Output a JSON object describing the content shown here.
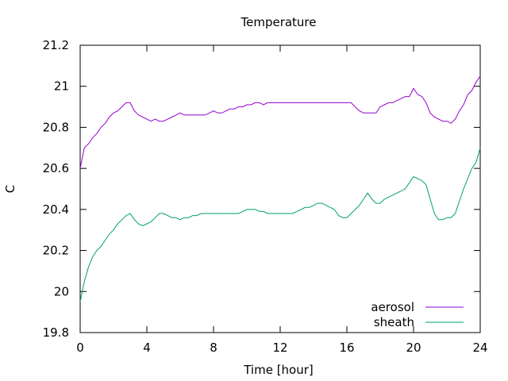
{
  "chart_data": {
    "type": "line",
    "title": "Temperature",
    "xlabel": "Time [hour]",
    "ylabel": "C",
    "xlim": [
      0,
      24
    ],
    "ylim": [
      19.8,
      21.2
    ],
    "x_ticks": [
      0,
      4,
      8,
      12,
      16,
      20,
      24
    ],
    "y_ticks": [
      19.8,
      20,
      20.2,
      20.4,
      20.6,
      20.8,
      21,
      21.2
    ],
    "x_tick_labels": [
      "0",
      "4",
      "8",
      "12",
      "16",
      "20",
      "24"
    ],
    "y_tick_labels": [
      "19.8",
      "20",
      "20.2",
      "20.4",
      "20.6",
      "20.8",
      "21",
      "21.2"
    ],
    "grid": false,
    "legend_position": "bottom-right",
    "x_step": 0.25,
    "series": [
      {
        "name": "aerosol",
        "color": "#9400d3",
        "values": [
          20.6,
          20.7,
          20.72,
          20.75,
          20.77,
          20.8,
          20.82,
          20.85,
          20.87,
          20.88,
          20.9,
          20.92,
          20.92,
          20.88,
          20.86,
          20.85,
          20.84,
          20.83,
          20.84,
          20.83,
          20.83,
          20.84,
          20.85,
          20.86,
          20.87,
          20.86,
          20.86,
          20.86,
          20.86,
          20.86,
          20.86,
          20.87,
          20.88,
          20.87,
          20.87,
          20.88,
          20.89,
          20.89,
          20.9,
          20.9,
          20.91,
          20.91,
          20.92,
          20.92,
          20.91,
          20.92,
          20.92,
          20.92,
          20.92,
          20.92,
          20.92,
          20.92,
          20.92,
          20.92,
          20.92,
          20.92,
          20.92,
          20.92,
          20.92,
          20.92,
          20.92,
          20.92,
          20.92,
          20.92,
          20.92,
          20.92,
          20.9,
          20.88,
          20.87,
          20.87,
          20.87,
          20.87,
          20.9,
          20.91,
          20.92,
          20.92,
          20.93,
          20.94,
          20.95,
          20.95,
          20.99,
          20.96,
          20.95,
          20.92,
          20.87,
          20.85,
          20.84,
          20.83,
          20.83,
          20.82,
          20.84,
          20.88,
          20.91,
          20.96,
          20.98,
          21.02,
          21.05
        ]
      },
      {
        "name": "sheath",
        "color": "#009e73",
        "values": [
          19.95,
          20.05,
          20.12,
          20.17,
          20.2,
          20.22,
          20.25,
          20.28,
          20.3,
          20.33,
          20.35,
          20.37,
          20.38,
          20.35,
          20.33,
          20.32,
          20.33,
          20.34,
          20.36,
          20.38,
          20.38,
          20.37,
          20.36,
          20.36,
          20.35,
          20.36,
          20.36,
          20.37,
          20.37,
          20.38,
          20.38,
          20.38,
          20.38,
          20.38,
          20.38,
          20.38,
          20.38,
          20.38,
          20.38,
          20.39,
          20.4,
          20.4,
          20.4,
          20.39,
          20.39,
          20.38,
          20.38,
          20.38,
          20.38,
          20.38,
          20.38,
          20.38,
          20.39,
          20.4,
          20.41,
          20.41,
          20.42,
          20.43,
          20.43,
          20.42,
          20.41,
          20.4,
          20.37,
          20.36,
          20.36,
          20.38,
          20.4,
          20.42,
          20.45,
          20.48,
          20.45,
          20.43,
          20.43,
          20.45,
          20.46,
          20.47,
          20.48,
          20.49,
          20.5,
          20.53,
          20.56,
          20.55,
          20.54,
          20.52,
          20.45,
          20.38,
          20.35,
          20.35,
          20.36,
          20.36,
          20.38,
          20.44,
          20.5,
          20.55,
          20.6,
          20.63,
          20.7
        ]
      }
    ]
  }
}
